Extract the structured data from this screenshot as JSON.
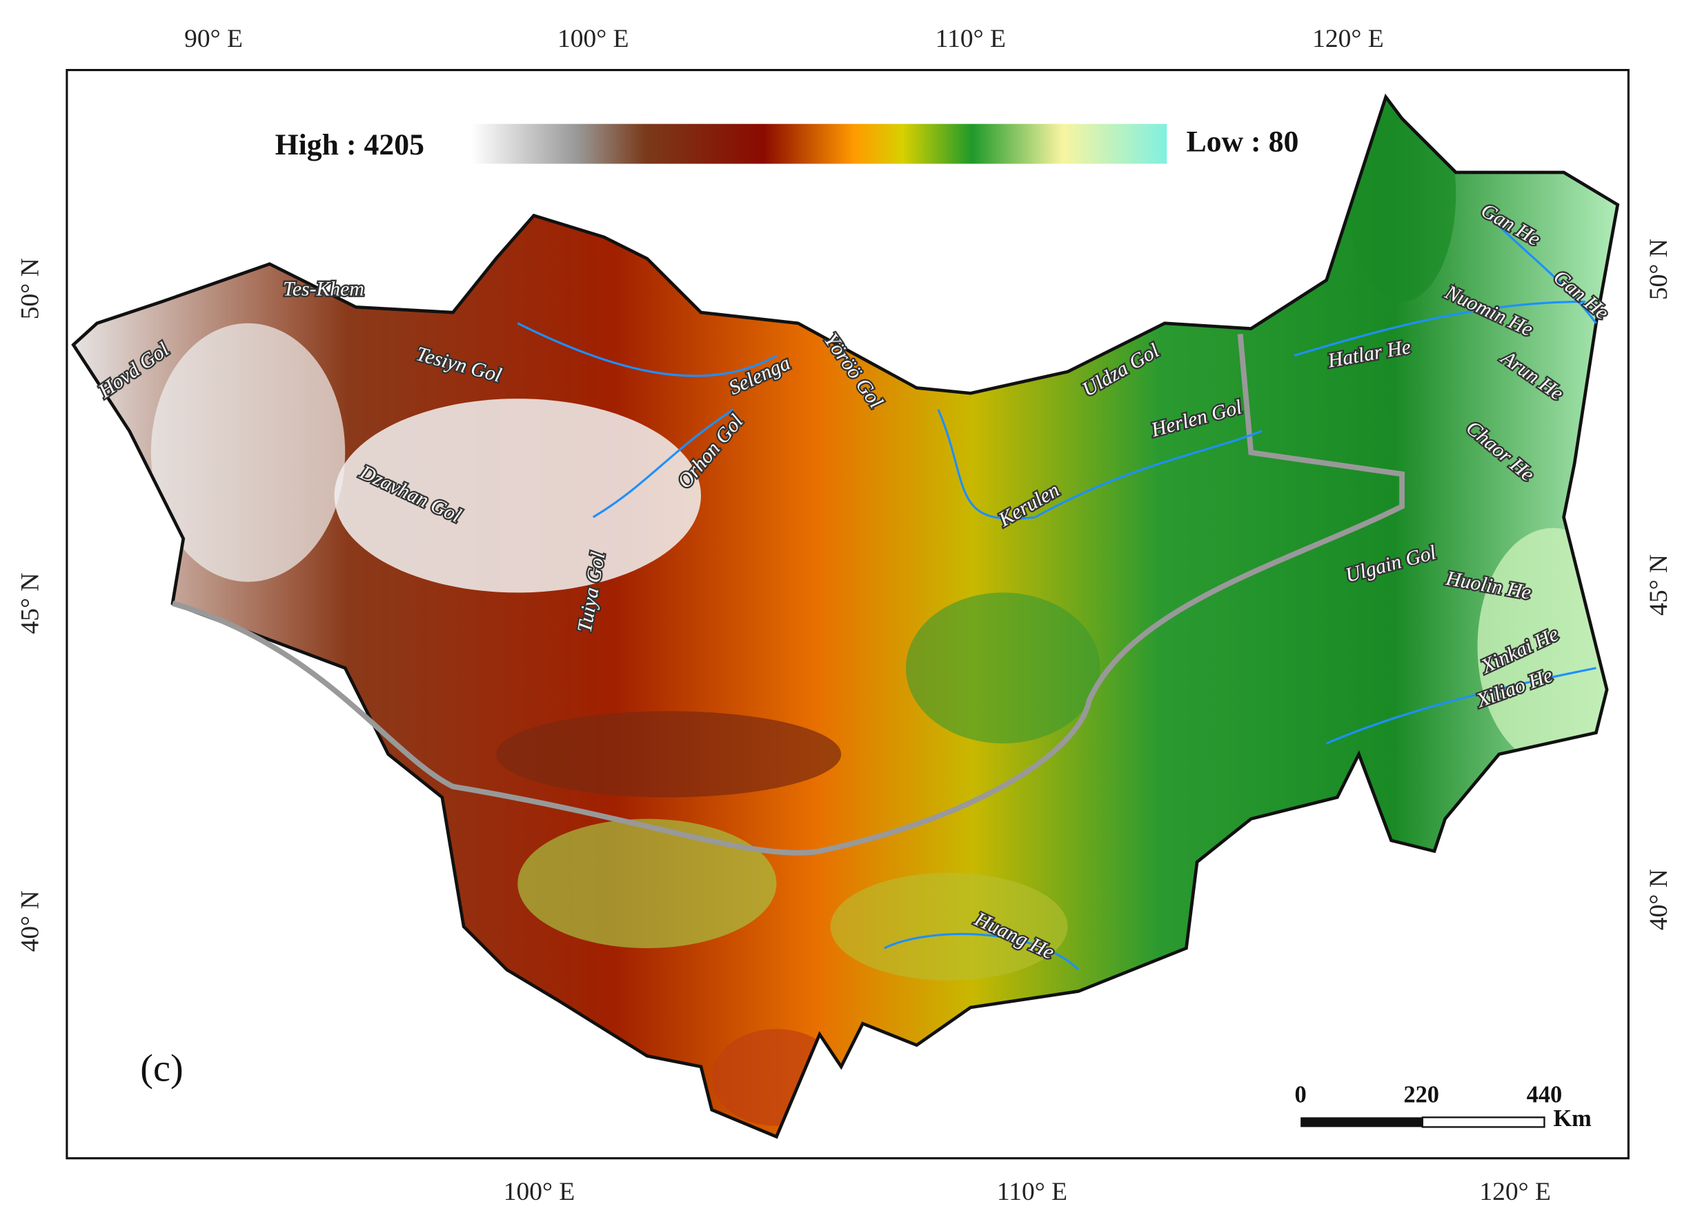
{
  "colorbar": {
    "high_label": "High : 4205",
    "low_label": "Low : 80"
  },
  "axes": {
    "top": [
      "90° E",
      "100° E",
      "110° E",
      "120° E"
    ],
    "bottom": [
      "100° E",
      "110° E",
      "120° E"
    ],
    "left": [
      "50° N",
      "45° N",
      "40° N"
    ],
    "right": [
      "50° N",
      "45° N",
      "40° N"
    ]
  },
  "rivers": [
    "Tes-Khem",
    "Hovd Gol",
    "Tesiyn Gol",
    "Dzavhan Gol",
    "Selenga",
    "Orhon Gol",
    "Yöröö Gol",
    "Tuiya Gol",
    "Uldza Gol",
    "Herlen Gol",
    "Kerulen",
    "Hatlar He",
    "Gan He",
    "Gan He",
    "Nuomin He",
    "Arun He",
    "Chaor He",
    "Ulgain Gol",
    "Huolin He",
    "Xinkai He",
    "Xiliao He",
    "Huang He"
  ],
  "panel_label": "(c)",
  "scale_bar": {
    "ticks": [
      "0",
      "220",
      "440"
    ],
    "unit": "Km"
  }
}
